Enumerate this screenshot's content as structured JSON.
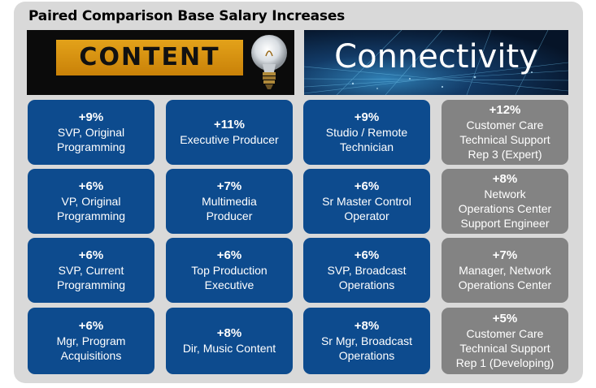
{
  "title": "Paired Comparison Base Salary Increases",
  "banners": {
    "left_text": "CONTENT",
    "right_text": "Connectivity"
  },
  "columns": [
    [
      {
        "pct": "+9%",
        "label": "SVP, Original\nProgramming"
      },
      {
        "pct": "+6%",
        "label": "VP, Original\nProgramming"
      },
      {
        "pct": "+6%",
        "label": "SVP, Current\nProgramming"
      },
      {
        "pct": "+6%",
        "label": "Mgr, Program\nAcquisitions"
      }
    ],
    [
      {
        "pct": "+11%",
        "label": "Executive Producer"
      },
      {
        "pct": "+7%",
        "label": "Multimedia\nProducer"
      },
      {
        "pct": "+6%",
        "label": "Top Production\nExecutive"
      },
      {
        "pct": "+8%",
        "label": "Dir, Music Content"
      }
    ],
    [
      {
        "pct": "+9%",
        "label": "Studio / Remote\nTechnician"
      },
      {
        "pct": "+6%",
        "label": "Sr Master Control\nOperator"
      },
      {
        "pct": "+6%",
        "label": "SVP, Broadcast\nOperations"
      },
      {
        "pct": "+8%",
        "label": "Sr Mgr, Broadcast\nOperations"
      }
    ],
    [
      {
        "pct": "+12%",
        "label": "Customer Care\nTechnical Support\nRep 3 (Expert)"
      },
      {
        "pct": "+8%",
        "label": "Network\nOperations Center\nSupport Engineer"
      },
      {
        "pct": "+7%",
        "label": "Manager, Network\nOperations Center"
      },
      {
        "pct": "+5%",
        "label": "Customer Care\nTechnical Support\nRep 1 (Developing)"
      }
    ]
  ],
  "colors": {
    "content_card": "#0d4b8e",
    "connectivity_card": "#838383",
    "panel": "#d9d9d9"
  },
  "icons": [
    "light-bulb-icon"
  ]
}
